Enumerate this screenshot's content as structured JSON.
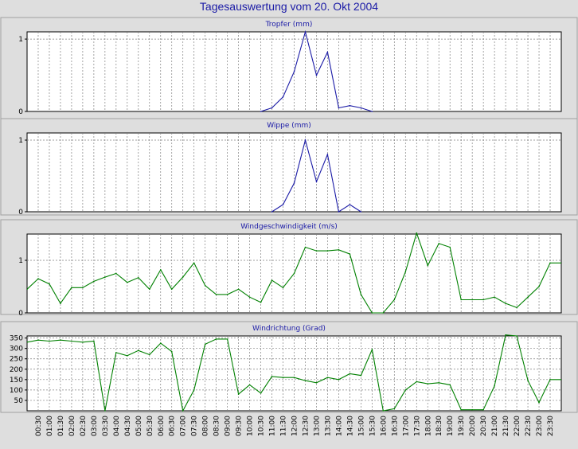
{
  "title": "Tagesauswertung vom 20. Okt 2004",
  "time_labels": [
    "00:30",
    "01:00",
    "01:30",
    "02:00",
    "02:30",
    "03:00",
    "03:30",
    "04:00",
    "04:30",
    "05:00",
    "05:30",
    "06:00",
    "06:30",
    "07:00",
    "07:30",
    "08:00",
    "08:30",
    "09:00",
    "09:30",
    "10:00",
    "10:30",
    "11:00",
    "11:30",
    "12:00",
    "12:30",
    "13:00",
    "13:30",
    "14:00",
    "14:30",
    "15:00",
    "15:30",
    "16:00",
    "16:30",
    "17:00",
    "17:30",
    "18:00",
    "18:30",
    "19:00",
    "19:30",
    "20:00",
    "20:30",
    "21:00",
    "21:30",
    "22:00",
    "22:30",
    "23:00",
    "23:30"
  ],
  "colors": {
    "blue": "#1a1aa6",
    "green": "#008000",
    "background": "#dedede",
    "plot": "#ffffff",
    "grid": "#808080"
  },
  "chart_data": [
    {
      "type": "line",
      "title": "Tropfer (mm)",
      "ylim": [
        0,
        1.1
      ],
      "yticks": [
        0,
        1
      ],
      "color": "#1a1aa6",
      "grid": true,
      "x": [
        "10:30",
        "11:00",
        "11:30",
        "12:00",
        "12:30",
        "13:00",
        "13:30",
        "14:00",
        "14:30",
        "15:00",
        "15:30"
      ],
      "values": [
        0,
        0.05,
        0.2,
        0.55,
        1.1,
        0.5,
        0.82,
        0.05,
        0.08,
        0.05,
        0
      ]
    },
    {
      "type": "line",
      "title": "Wippe (mm)",
      "ylim": [
        0,
        1.1
      ],
      "yticks": [
        0,
        1
      ],
      "color": "#1a1aa6",
      "grid": true,
      "x": [
        "11:00",
        "11:30",
        "12:00",
        "12:30",
        "13:00",
        "13:30",
        "14:00",
        "14:30",
        "15:00"
      ],
      "values": [
        0,
        0.1,
        0.4,
        1.0,
        0.42,
        0.8,
        0,
        0.1,
        0
      ]
    },
    {
      "type": "line",
      "title": "Windgeschwindigkeit (m/s)",
      "ylim": [
        0,
        1.5
      ],
      "yticks": [
        0,
        1
      ],
      "color": "#008000",
      "grid": true,
      "x": [
        "00:00",
        "00:30",
        "01:00",
        "01:30",
        "02:00",
        "02:30",
        "03:00",
        "03:30",
        "04:00",
        "04:30",
        "05:00",
        "05:30",
        "06:00",
        "06:30",
        "07:00",
        "07:30",
        "08:00",
        "08:30",
        "09:00",
        "09:30",
        "10:00",
        "10:30",
        "11:00",
        "11:30",
        "12:00",
        "12:30",
        "13:00",
        "13:30",
        "14:00",
        "14:30",
        "15:00",
        "15:30",
        "16:00",
        "16:30",
        "17:00",
        "17:30",
        "18:00",
        "18:30",
        "19:00",
        "19:30",
        "20:00",
        "20:30",
        "21:00",
        "21:30",
        "22:00",
        "22:30",
        "23:00",
        "23:30",
        "24:00"
      ],
      "values": [
        0.45,
        0.65,
        0.55,
        0.18,
        0.48,
        0.48,
        0.6,
        0.68,
        0.75,
        0.58,
        0.67,
        0.45,
        0.82,
        0.45,
        0.68,
        0.95,
        0.52,
        0.35,
        0.35,
        0.45,
        0.3,
        0.2,
        0.62,
        0.48,
        0.75,
        1.25,
        1.18,
        1.18,
        1.2,
        1.12,
        0.35,
        0,
        0,
        0.25,
        0.78,
        1.52,
        0.9,
        1.32,
        1.25,
        0.25,
        0.25,
        0.25,
        0.3,
        0.18,
        0.1,
        0.3,
        0.5,
        0.95,
        0.95
      ]
    },
    {
      "type": "line",
      "title": "Windrichtung (Grad)",
      "ylim": [
        0,
        360
      ],
      "yticks": [
        50,
        100,
        150,
        200,
        250,
        300,
        350
      ],
      "color": "#008000",
      "grid": true,
      "x": [
        "00:00",
        "00:30",
        "01:00",
        "01:30",
        "02:00",
        "02:30",
        "03:00",
        "03:30",
        "04:00",
        "04:30",
        "05:00",
        "05:30",
        "06:00",
        "06:30",
        "07:00",
        "07:30",
        "08:00",
        "08:30",
        "09:00",
        "09:30",
        "10:00",
        "10:30",
        "11:00",
        "11:30",
        "12:00",
        "12:30",
        "13:00",
        "13:30",
        "14:00",
        "14:30",
        "15:00",
        "15:30",
        "16:00",
        "16:30",
        "17:00",
        "17:30",
        "18:00",
        "18:30",
        "19:00",
        "19:30",
        "20:00",
        "20:30",
        "21:00",
        "21:30",
        "22:00",
        "22:30",
        "23:00",
        "23:30",
        "24:00"
      ],
      "values": [
        330,
        340,
        335,
        340,
        335,
        330,
        335,
        0,
        280,
        265,
        290,
        270,
        325,
        285,
        0,
        100,
        320,
        345,
        345,
        80,
        125,
        85,
        165,
        160,
        160,
        145,
        135,
        160,
        150,
        178,
        170,
        295,
        0,
        10,
        100,
        140,
        130,
        135,
        125,
        5,
        5,
        5,
        120,
        365,
        360,
        145,
        40,
        150,
        150
      ]
    }
  ]
}
